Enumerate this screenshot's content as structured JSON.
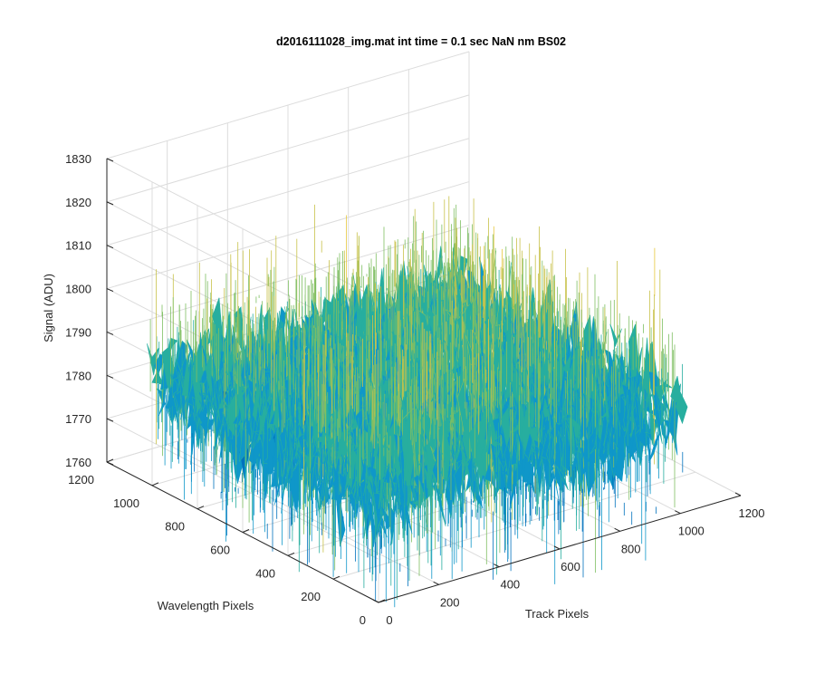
{
  "chart_data": {
    "type": "surface3d",
    "title": "d2016111028_img.mat int time = 0.1 sec  NaN nm BS02",
    "xlabel": "Track Pixels",
    "ylabel": "Wavelength Pixels",
    "zlabel": "Signal (ADU)",
    "xlim": [
      0,
      1200
    ],
    "ylim": [
      0,
      1200
    ],
    "zlim": [
      1760,
      1830
    ],
    "x_ticks": [
      "0",
      "200",
      "400",
      "600",
      "800",
      "1000",
      "1200"
    ],
    "y_ticks": [
      "0",
      "200",
      "400",
      "600",
      "800",
      "1000",
      "1200"
    ],
    "z_ticks": [
      "1760",
      "1770",
      "1780",
      "1790",
      "1800",
      "1810",
      "1820",
      "1830"
    ],
    "x_tick_values": [
      0,
      200,
      400,
      600,
      800,
      1000,
      1200
    ],
    "y_tick_values": [
      0,
      200,
      400,
      600,
      800,
      1000,
      1200
    ],
    "z_tick_values": [
      1760,
      1770,
      1780,
      1790,
      1800,
      1810,
      1820,
      1830
    ],
    "data_extent": {
      "x": [
        1,
        1024
      ],
      "y": [
        1,
        1024
      ]
    },
    "signal_mean": 1783,
    "signal_spread": 20,
    "colormap": [
      "#0072bd",
      "#0f97c9",
      "#27ae9f",
      "#7fbf63",
      "#c8c24a",
      "#e6c83c"
    ],
    "grid": true
  }
}
